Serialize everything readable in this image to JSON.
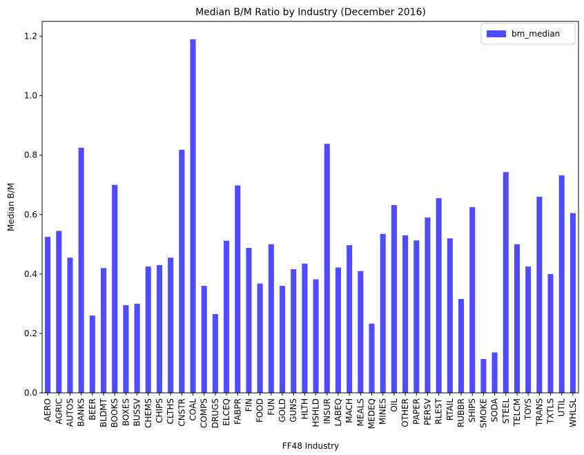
{
  "chart_data": {
    "type": "bar",
    "title": "Median B/M Ratio by Industry (December 2016)",
    "xlabel": "FF48 Industry",
    "ylabel": "Median B/M",
    "ylim": [
      0,
      1.25
    ],
    "yticks": [
      0.0,
      0.2,
      0.4,
      0.6,
      0.8,
      1.0,
      1.2
    ],
    "ytick_labels": [
      "0.0",
      "0.2",
      "0.4",
      "0.6",
      "0.8",
      "1.0",
      "1.2"
    ],
    "grid": false,
    "legend": {
      "position": "top-right"
    },
    "categories": [
      "AERO",
      "AGRIC",
      "AUTOS",
      "BANKS",
      "BEER",
      "BLDMT",
      "BOOKS",
      "BOXES",
      "BUSSV",
      "CHEMS",
      "CHIPS",
      "CLTHS",
      "CNSTR",
      "COAL",
      "COMPS",
      "DRUGS",
      "ELCEQ",
      "FABPR",
      "FIN",
      "FOOD",
      "FUN",
      "GOLD",
      "GUNS",
      "HLTH",
      "HSHLD",
      "INSUR",
      "LABEQ",
      "MACH",
      "MEALS",
      "MEDEQ",
      "MINES",
      "OIL",
      "OTHER",
      "PAPER",
      "PERSV",
      "RLEST",
      "RTAIL",
      "RUBBR",
      "SHIPS",
      "SMOKE",
      "SODA",
      "STEEL",
      "TELCM",
      "TOYS",
      "TRANS",
      "TXTLS",
      "UTIL",
      "WHLSL"
    ],
    "series": [
      {
        "name": "bm_median",
        "color": "#4d4dff",
        "values": [
          0.525,
          0.545,
          0.455,
          0.825,
          0.26,
          0.42,
          0.7,
          0.295,
          0.3,
          0.425,
          0.43,
          0.455,
          0.818,
          1.19,
          0.36,
          0.265,
          0.512,
          0.698,
          0.488,
          0.368,
          0.5,
          0.36,
          0.416,
          0.435,
          0.382,
          0.838,
          0.422,
          0.497,
          0.41,
          0.233,
          0.535,
          0.632,
          0.53,
          0.513,
          0.59,
          0.655,
          0.52,
          0.316,
          0.625,
          0.114,
          0.136,
          0.743,
          0.5,
          0.425,
          0.66,
          0.4,
          0.732,
          0.605
        ]
      }
    ]
  }
}
